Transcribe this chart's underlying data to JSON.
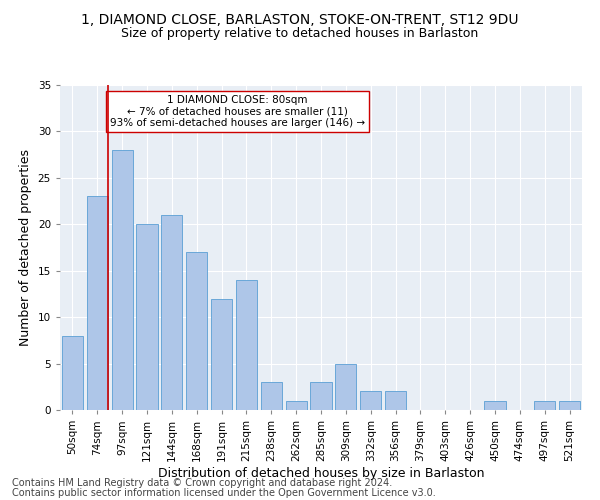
{
  "title1": "1, DIAMOND CLOSE, BARLASTON, STOKE-ON-TRENT, ST12 9DU",
  "title2": "Size of property relative to detached houses in Barlaston",
  "xlabel": "Distribution of detached houses by size in Barlaston",
  "ylabel": "Number of detached properties",
  "categories": [
    "50sqm",
    "74sqm",
    "97sqm",
    "121sqm",
    "144sqm",
    "168sqm",
    "191sqm",
    "215sqm",
    "238sqm",
    "262sqm",
    "285sqm",
    "309sqm",
    "332sqm",
    "356sqm",
    "379sqm",
    "403sqm",
    "426sqm",
    "450sqm",
    "474sqm",
    "497sqm",
    "521sqm"
  ],
  "values": [
    8,
    23,
    28,
    20,
    21,
    17,
    12,
    14,
    3,
    1,
    3,
    5,
    2,
    2,
    0,
    0,
    0,
    1,
    0,
    1,
    1
  ],
  "bar_color": "#aec6e8",
  "bar_edge_color": "#5a9fd4",
  "vline_x": 1.425,
  "vline_color": "#cc0000",
  "annotation_text": "1 DIAMOND CLOSE: 80sqm\n← 7% of detached houses are smaller (11)\n93% of semi-detached houses are larger (146) →",
  "annotation_box_color": "#ffffff",
  "annotation_box_edge": "#cc0000",
  "ylim": [
    0,
    35
  ],
  "yticks": [
    0,
    5,
    10,
    15,
    20,
    25,
    30,
    35
  ],
  "footer1": "Contains HM Land Registry data © Crown copyright and database right 2024.",
  "footer2": "Contains public sector information licensed under the Open Government Licence v3.0.",
  "title1_fontsize": 10,
  "title2_fontsize": 9,
  "xlabel_fontsize": 9,
  "ylabel_fontsize": 9,
  "tick_fontsize": 7.5,
  "footer_fontsize": 7,
  "ann_fontsize": 7.5,
  "bg_color": "#e8eef5"
}
